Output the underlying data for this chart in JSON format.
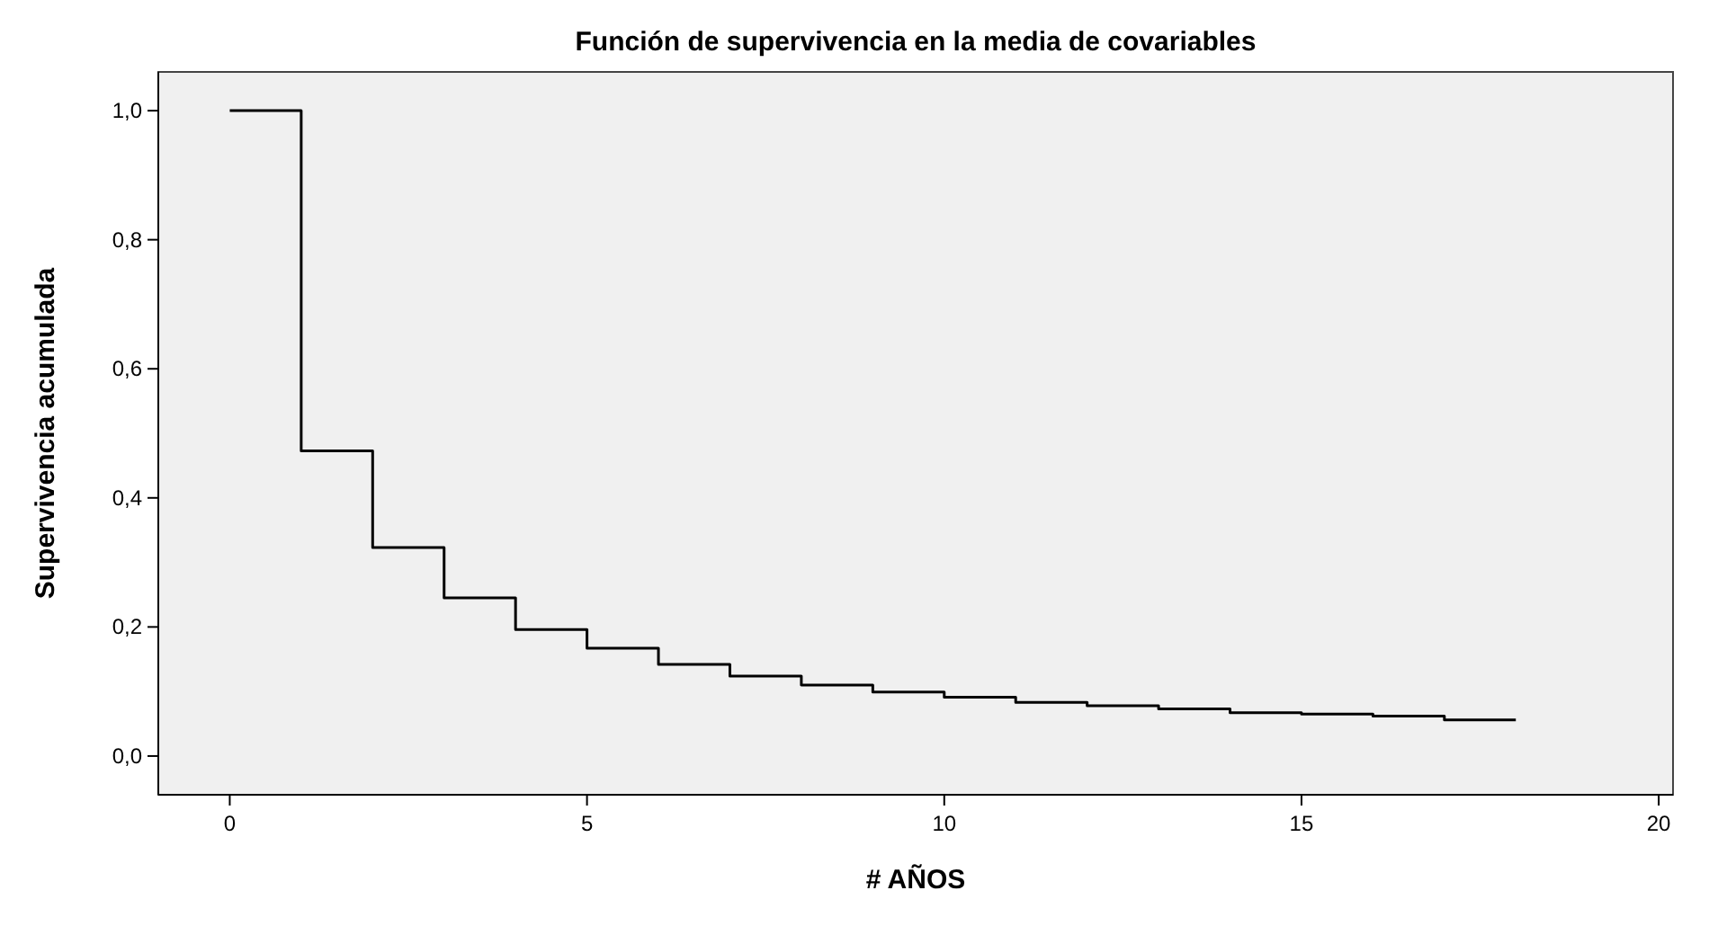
{
  "chart_data": {
    "type": "step",
    "title": "Función de supervivencia en la media de covariables",
    "xlabel": "# AÑOS",
    "ylabel": "Supervivencia acumulada",
    "x": [
      0,
      1,
      2,
      3,
      4,
      5,
      6,
      7,
      8,
      9,
      10,
      11,
      12,
      13,
      14,
      15,
      16,
      17,
      18
    ],
    "series": [
      {
        "color": "#000000",
        "values": [
          1.0,
          0.473,
          0.323,
          0.245,
          0.196,
          0.167,
          0.142,
          0.124,
          0.11,
          0.099,
          0.091,
          0.083,
          0.078,
          0.073,
          0.067,
          0.065,
          0.062,
          0.056,
          0.056
        ]
      }
    ],
    "xlim": [
      -1,
      20.2
    ],
    "xticks": [
      0,
      5,
      10,
      15,
      20
    ],
    "ylim": [
      -0.06,
      1.06
    ],
    "yticks": [
      {
        "value": 0,
        "label": "0,0"
      },
      {
        "value": 0.2,
        "label": "0,2"
      },
      {
        "value": 0.4,
        "label": "0,4"
      },
      {
        "value": 0.6,
        "label": "0,6"
      },
      {
        "value": 0.8,
        "label": "0,8"
      },
      {
        "value": 1,
        "label": "1,0"
      }
    ],
    "grid": false
  }
}
